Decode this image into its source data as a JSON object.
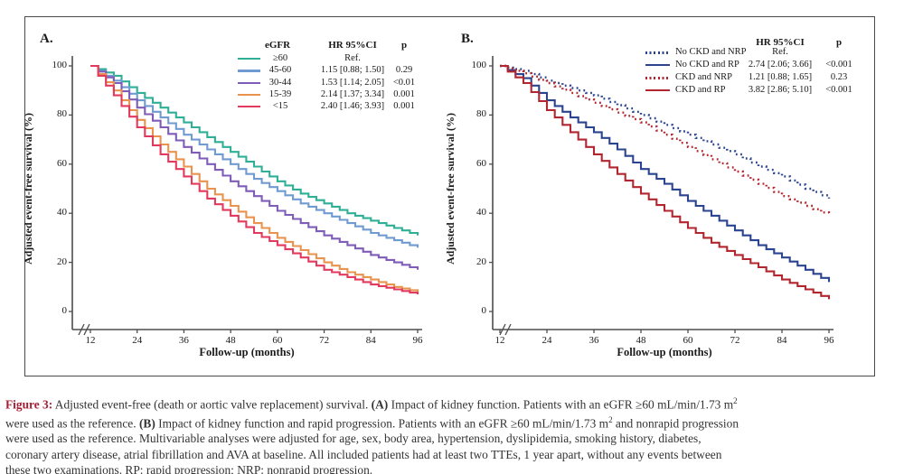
{
  "chart_data": [
    {
      "type": "line",
      "panel_label": "A.",
      "xlabel": "Follow-up (months)",
      "ylabel": "Adjusted event-free survival (%)",
      "xlim": [
        12,
        96
      ],
      "ylim": [
        0,
        100
      ],
      "xticks": [
        12,
        24,
        36,
        48,
        60,
        72,
        84,
        96
      ],
      "yticks": [
        0,
        20,
        40,
        60,
        80,
        100
      ],
      "axis_break": true,
      "legend_position": "top-right",
      "legend_headers": [
        "eGFR",
        "HR 95%CI",
        "p"
      ],
      "x": [
        12,
        18,
        24,
        30,
        36,
        42,
        48,
        54,
        60,
        66,
        72,
        78,
        84,
        90,
        96
      ],
      "series": [
        {
          "name": "≥60",
          "color": "#2fb096",
          "style": "solid",
          "hr": "Ref.",
          "p": "",
          "values": [
            100,
            96,
            89,
            83,
            77,
            71,
            65,
            59,
            53,
            48,
            44,
            40,
            37,
            34,
            31
          ]
        },
        {
          "name": "45-60",
          "color": "#6f9bd2",
          "style": "solid",
          "hr": "1.15 [0.88; 1.50]",
          "p": "0.29",
          "values": [
            100,
            94,
            86,
            79,
            72,
            66,
            60,
            54,
            49,
            44,
            40,
            36,
            32,
            29,
            26
          ]
        },
        {
          "name": "30-44",
          "color": "#7e5cb8",
          "style": "solid",
          "hr": "1.53 [1.14; 2.05]",
          "p": "<0.01",
          "values": [
            100,
            93,
            83,
            75,
            67,
            60,
            53,
            47,
            41,
            36,
            31,
            27,
            23,
            20,
            17
          ]
        },
        {
          "name": "15-39",
          "color": "#e8934e",
          "style": "solid",
          "hr": "2.14 [1.37; 3.34]",
          "p": "0.001",
          "values": [
            100,
            90,
            78,
            68,
            59,
            50,
            43,
            36,
            30,
            25,
            20,
            16,
            13,
            10,
            8
          ]
        },
        {
          "name": "<15",
          "color": "#e23a5e",
          "style": "solid",
          "hr": "2.40 [1.46; 3.93]",
          "p": "0.001",
          "values": [
            100,
            88,
            75,
            64,
            55,
            46,
            39,
            32,
            27,
            22,
            17,
            14,
            11,
            9,
            7
          ]
        }
      ]
    },
    {
      "type": "line",
      "panel_label": "B.",
      "xlabel": "Follow-up (months)",
      "ylabel": "Adjusted event-free survival (%)",
      "xlim": [
        12,
        96
      ],
      "ylim": [
        0,
        100
      ],
      "xticks": [
        12,
        24,
        36,
        48,
        60,
        72,
        84,
        96
      ],
      "yticks": [
        0,
        20,
        40,
        60,
        80,
        100
      ],
      "axis_break": true,
      "legend_position": "top-right",
      "legend_headers": [
        "HR 95%CI",
        "p"
      ],
      "x": [
        12,
        18,
        24,
        30,
        36,
        42,
        48,
        54,
        60,
        66,
        72,
        78,
        84,
        90,
        96
      ],
      "series": [
        {
          "name": "No CKD and NRP",
          "color": "#2a4490",
          "style": "dotted",
          "hr": "Ref.",
          "p": "",
          "values": [
            100,
            98,
            94,
            91,
            88,
            84,
            80,
            76,
            72,
            68,
            64,
            59,
            55,
            50,
            46
          ]
        },
        {
          "name": "No CKD and RP",
          "color": "#2a4490",
          "style": "solid",
          "hr": "2.74 [2.06; 3.66]",
          "p": "<0.001",
          "values": [
            100,
            95,
            86,
            79,
            73,
            66,
            58,
            52,
            45,
            39,
            33,
            27,
            22,
            17,
            12
          ]
        },
        {
          "name": "CKD and NRP",
          "color": "#b2262f",
          "style": "dotted",
          "hr": "1.21 [0.88; 1.65]",
          "p": "0.23",
          "values": [
            100,
            97,
            93,
            89,
            85,
            81,
            77,
            72,
            67,
            62,
            57,
            52,
            47,
            43,
            39
          ]
        },
        {
          "name": "CKD and RP",
          "color": "#b2262f",
          "style": "solid",
          "hr": "3.82 [2.86; 5.10]",
          "p": "<0.001",
          "values": [
            100,
            93,
            82,
            73,
            64,
            56,
            48,
            41,
            34,
            28,
            23,
            18,
            13,
            9,
            5
          ]
        }
      ]
    }
  ],
  "caption": {
    "label_color": "#a41e35",
    "lines": [
      [
        {
          "t": "Figure 3:",
          "b": true,
          "color": "#a41e35"
        },
        {
          "t": " Adjusted event-free (death or aortic valve replacement) survival. "
        },
        {
          "t": "(A)",
          "b": true
        },
        {
          "t": " Impact of kidney function. Patients with an eGFR ≥60 mL/min/1.73 m"
        },
        {
          "t": "2",
          "sup": true
        }
      ],
      [
        {
          "t": "were used as the reference. "
        },
        {
          "t": "(B)",
          "b": true
        },
        {
          "t": " Impact of kidney function and rapid progression. Patients with an eGFR ≥60 mL/min/1.73 m"
        },
        {
          "t": "2",
          "sup": true
        },
        {
          "t": " and nonrapid progression"
        }
      ],
      [
        {
          "t": "were used as the reference. Multivariable analyses were adjusted for age, sex, body area, hypertension, dyslipidemia, smoking history, diabetes,"
        }
      ],
      [
        {
          "t": "coronary artery disease, atrial fibrillation and AVA at baseline. All included patients had at least two TTEs, 1 year apart, without any events between"
        }
      ],
      [
        {
          "t": "these two examinations. RP: rapid progression; NRP: nonrapid progression."
        }
      ]
    ]
  }
}
